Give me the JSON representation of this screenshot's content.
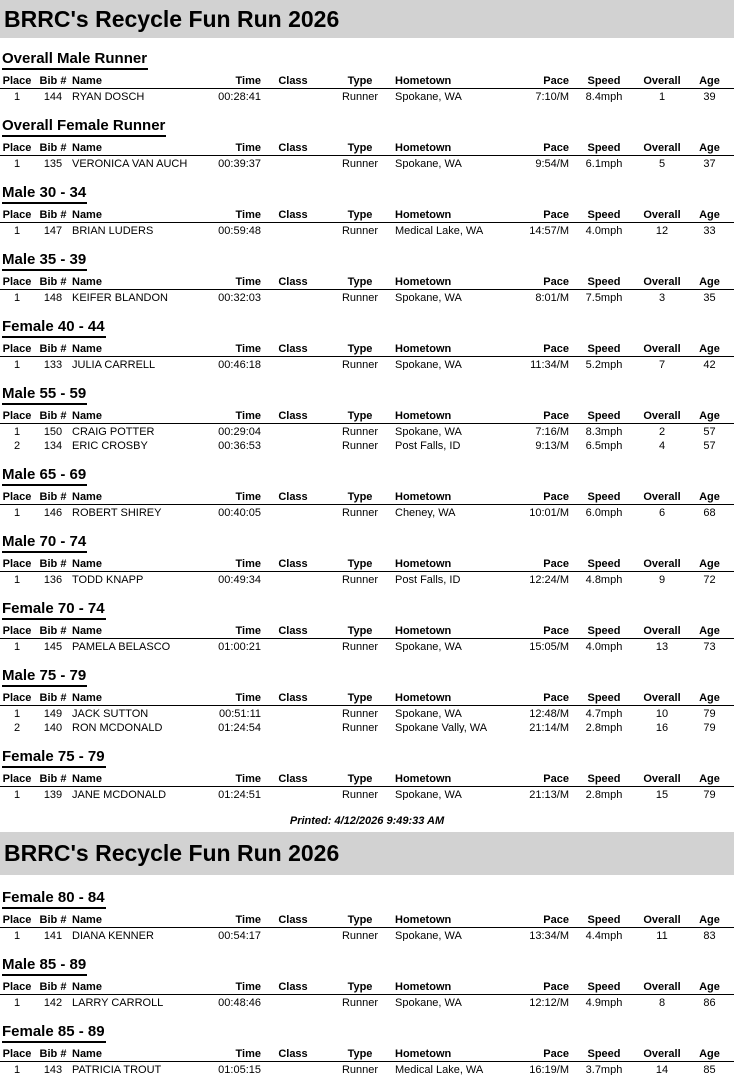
{
  "report": {
    "printed_label": "Printed: 4/12/2026 9:49:33 AM",
    "band_color": "#d2d2d2",
    "text_color": "#000000"
  },
  "columns": [
    {
      "key": "place",
      "label": "Place"
    },
    {
      "key": "bib",
      "label": "Bib #"
    },
    {
      "key": "name",
      "label": "Name"
    },
    {
      "key": "time",
      "label": "Time"
    },
    {
      "key": "class",
      "label": "Class"
    },
    {
      "key": "type",
      "label": "Type"
    },
    {
      "key": "hometown",
      "label": "Hometown"
    },
    {
      "key": "pace",
      "label": "Pace"
    },
    {
      "key": "speed",
      "label": "Speed"
    },
    {
      "key": "overall",
      "label": "Overall"
    },
    {
      "key": "age",
      "label": "Age"
    }
  ],
  "pages": [
    {
      "title": "BRRC's Recycle Fun Run 2026",
      "sections": [
        {
          "heading": "Overall Male Runner",
          "rows": [
            {
              "place": "1",
              "bib": "144",
              "name": "RYAN DOSCH",
              "time": "00:28:41",
              "class": "",
              "type": "Runner",
              "hometown": "Spokane, WA",
              "pace": "7:10/M",
              "speed": "8.4mph",
              "overall": "1",
              "age": "39"
            }
          ]
        },
        {
          "heading": "Overall Female Runner",
          "rows": [
            {
              "place": "1",
              "bib": "135",
              "name": "VERONICA VAN AUCH",
              "time": "00:39:37",
              "class": "",
              "type": "Runner",
              "hometown": "Spokane, WA",
              "pace": "9:54/M",
              "speed": "6.1mph",
              "overall": "5",
              "age": "37"
            }
          ]
        },
        {
          "heading": "Male 30 - 34",
          "rows": [
            {
              "place": "1",
              "bib": "147",
              "name": "BRIAN LUDERS",
              "time": "00:59:48",
              "class": "",
              "type": "Runner",
              "hometown": "Medical Lake, WA",
              "pace": "14:57/M",
              "speed": "4.0mph",
              "overall": "12",
              "age": "33"
            }
          ]
        },
        {
          "heading": "Male 35 - 39",
          "rows": [
            {
              "place": "1",
              "bib": "148",
              "name": "KEIFER BLANDON",
              "time": "00:32:03",
              "class": "",
              "type": "Runner",
              "hometown": "Spokane, WA",
              "pace": "8:01/M",
              "speed": "7.5mph",
              "overall": "3",
              "age": "35"
            }
          ]
        },
        {
          "heading": "Female 40 - 44",
          "rows": [
            {
              "place": "1",
              "bib": "133",
              "name": "JULIA CARRELL",
              "time": "00:46:18",
              "class": "",
              "type": "Runner",
              "hometown": "Spokane, WA",
              "pace": "11:34/M",
              "speed": "5.2mph",
              "overall": "7",
              "age": "42"
            }
          ]
        },
        {
          "heading": "Male 55 - 59",
          "rows": [
            {
              "place": "1",
              "bib": "150",
              "name": "CRAIG POTTER",
              "time": "00:29:04",
              "class": "",
              "type": "Runner",
              "hometown": "Spokane, WA",
              "pace": "7:16/M",
              "speed": "8.3mph",
              "overall": "2",
              "age": "57"
            },
            {
              "place": "2",
              "bib": "134",
              "name": "ERIC CROSBY",
              "time": "00:36:53",
              "class": "",
              "type": "Runner",
              "hometown": "Post Falls, ID",
              "pace": "9:13/M",
              "speed": "6.5mph",
              "overall": "4",
              "age": "57"
            }
          ]
        },
        {
          "heading": "Male 65 - 69",
          "rows": [
            {
              "place": "1",
              "bib": "146",
              "name": "ROBERT SHIREY",
              "time": "00:40:05",
              "class": "",
              "type": "Runner",
              "hometown": "Cheney, WA",
              "pace": "10:01/M",
              "speed": "6.0mph",
              "overall": "6",
              "age": "68"
            }
          ]
        },
        {
          "heading": "Male 70 - 74",
          "rows": [
            {
              "place": "1",
              "bib": "136",
              "name": "TODD KNAPP",
              "time": "00:49:34",
              "class": "",
              "type": "Runner",
              "hometown": "Post Falls, ID",
              "pace": "12:24/M",
              "speed": "4.8mph",
              "overall": "9",
              "age": "72"
            }
          ]
        },
        {
          "heading": "Female 70 - 74",
          "rows": [
            {
              "place": "1",
              "bib": "145",
              "name": "PAMELA BELASCO",
              "time": "01:00:21",
              "class": "",
              "type": "Runner",
              "hometown": "Spokane, WA",
              "pace": "15:05/M",
              "speed": "4.0mph",
              "overall": "13",
              "age": "73"
            }
          ]
        },
        {
          "heading": "Male 75 - 79",
          "rows": [
            {
              "place": "1",
              "bib": "149",
              "name": "JACK SUTTON",
              "time": "00:51:11",
              "class": "",
              "type": "Runner",
              "hometown": "Spokane, WA",
              "pace": "12:48/M",
              "speed": "4.7mph",
              "overall": "10",
              "age": "79"
            },
            {
              "place": "2",
              "bib": "140",
              "name": "RON MCDONALD",
              "time": "01:24:54",
              "class": "",
              "type": "Runner",
              "hometown": "Spokane Vally, WA",
              "pace": "21:14/M",
              "speed": "2.8mph",
              "overall": "16",
              "age": "79"
            }
          ]
        },
        {
          "heading": "Female 75 - 79",
          "rows": [
            {
              "place": "1",
              "bib": "139",
              "name": "JANE MCDONALD",
              "time": "01:24:51",
              "class": "",
              "type": "Runner",
              "hometown": "Spokane, WA",
              "pace": "21:13/M",
              "speed": "2.8mph",
              "overall": "15",
              "age": "79"
            }
          ]
        }
      ]
    },
    {
      "title": "BRRC's Recycle Fun Run 2026",
      "sections": [
        {
          "heading": "Female 80 - 84",
          "rows": [
            {
              "place": "1",
              "bib": "141",
              "name": "DIANA KENNER",
              "time": "00:54:17",
              "class": "",
              "type": "Runner",
              "hometown": "Spokane, WA",
              "pace": "13:34/M",
              "speed": "4.4mph",
              "overall": "11",
              "age": "83"
            }
          ]
        },
        {
          "heading": "Male 85 - 89",
          "rows": [
            {
              "place": "1",
              "bib": "142",
              "name": "LARRY CARROLL",
              "time": "00:48:46",
              "class": "",
              "type": "Runner",
              "hometown": "Spokane, WA",
              "pace": "12:12/M",
              "speed": "4.9mph",
              "overall": "8",
              "age": "86"
            }
          ]
        },
        {
          "heading": "Female 85 - 89",
          "rows": [
            {
              "place": "1",
              "bib": "143",
              "name": "PATRICIA TROUT",
              "time": "01:05:15",
              "class": "",
              "type": "Runner",
              "hometown": "Medical Lake, WA",
              "pace": "16:19/M",
              "speed": "3.7mph",
              "overall": "14",
              "age": "85"
            }
          ]
        }
      ]
    }
  ]
}
